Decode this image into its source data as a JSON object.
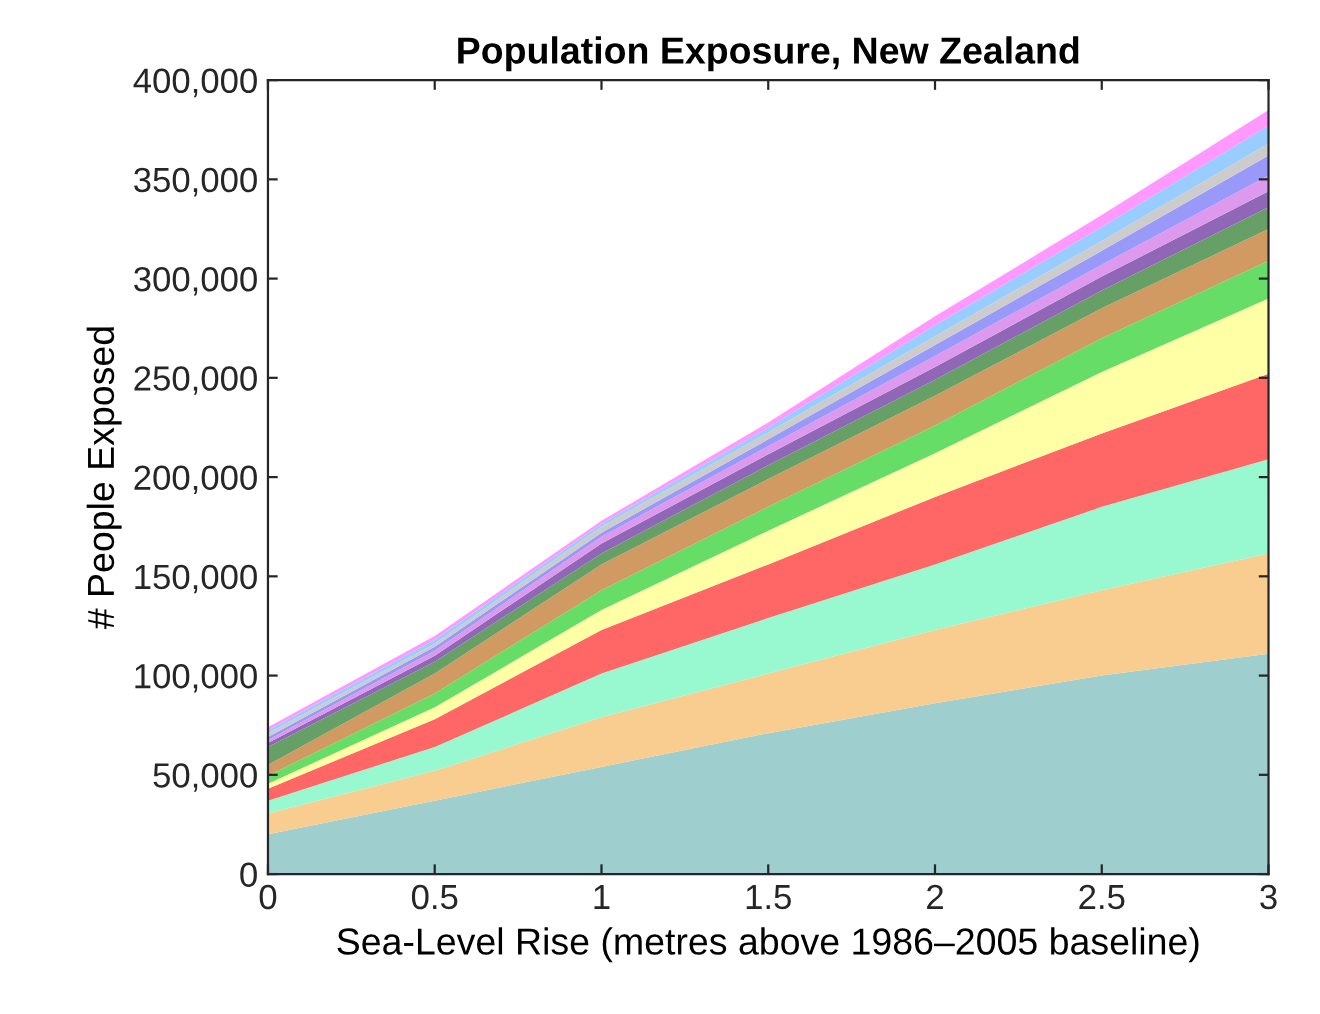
{
  "chart_data": {
    "type": "area",
    "stacked": true,
    "title": "Population Exposure, New Zealand",
    "xlabel": "Sea-Level Rise (metres above 1986–2005 baseline)",
    "ylabel": "# People Exposed",
    "x": [
      0,
      0.5,
      1,
      1.5,
      2,
      2.5,
      3
    ],
    "xlim": [
      0,
      3
    ],
    "xticks": [
      0,
      0.5,
      1,
      1.5,
      2,
      2.5,
      3
    ],
    "ylim": [
      0,
      400000
    ],
    "yticks": [
      {
        "value": 0,
        "label": "0"
      },
      {
        "value": 50000,
        "label": "50,000"
      },
      {
        "value": 100000,
        "label": "100,000"
      },
      {
        "value": 150000,
        "label": "150,000"
      },
      {
        "value": 200000,
        "label": "200,000"
      },
      {
        "value": 250000,
        "label": "250,000"
      },
      {
        "value": 300000,
        "label": "300,000"
      },
      {
        "value": 350000,
        "label": "350,000"
      },
      {
        "value": 400000,
        "label": "400,000"
      }
    ],
    "grid": false,
    "legend": false,
    "series": [
      {
        "color": "#9ecece",
        "values": [
          20000,
          37000,
          54000,
          71000,
          86000,
          100000,
          111000
        ]
      },
      {
        "color": "#f9cc8f",
        "values": [
          10500,
          15000,
          25000,
          30000,
          37000,
          43000,
          50500
        ]
      },
      {
        "color": "#98f8d0",
        "values": [
          6500,
          12000,
          22000,
          28000,
          33000,
          42000,
          47500
        ]
      },
      {
        "color": "#ff6666",
        "values": [
          6000,
          14000,
          22000,
          27000,
          34000,
          37000,
          43000
        ]
      },
      {
        "color": "#ffffa6",
        "values": [
          2500,
          6000,
          10000,
          17000,
          22000,
          31000,
          38000
        ]
      },
      {
        "color": "#66dd66",
        "values": [
          4000,
          7000,
          10000,
          12000,
          14000,
          17000,
          19000
        ]
      },
      {
        "color": "#d19a63",
        "values": [
          5500,
          10000,
          13000,
          14000,
          15000,
          15000,
          16000
        ]
      },
      {
        "color": "#66a066",
        "values": [
          9000,
          6000,
          5500,
          7000,
          8000,
          9000,
          11000
        ]
      },
      {
        "color": "#9066b6",
        "values": [
          2000,
          3000,
          5000,
          5500,
          6500,
          7000,
          8000
        ]
      },
      {
        "color": "#dd99ee",
        "values": [
          1500,
          2500,
          3500,
          4000,
          5500,
          6000,
          8000
        ]
      },
      {
        "color": "#9999f9",
        "values": [
          1500,
          2000,
          2000,
          3500,
          5500,
          7000,
          10000
        ]
      },
      {
        "color": "#cccccc",
        "values": [
          2000,
          1500,
          3000,
          3500,
          4500,
          5000,
          6000
        ]
      },
      {
        "color": "#99ccff",
        "values": [
          1500,
          2000,
          1500,
          2500,
          5500,
          7000,
          9000
        ]
      },
      {
        "color": "#ff99ff",
        "values": [
          1500,
          2000,
          1500,
          2500,
          4500,
          6000,
          8000
        ]
      }
    ]
  }
}
